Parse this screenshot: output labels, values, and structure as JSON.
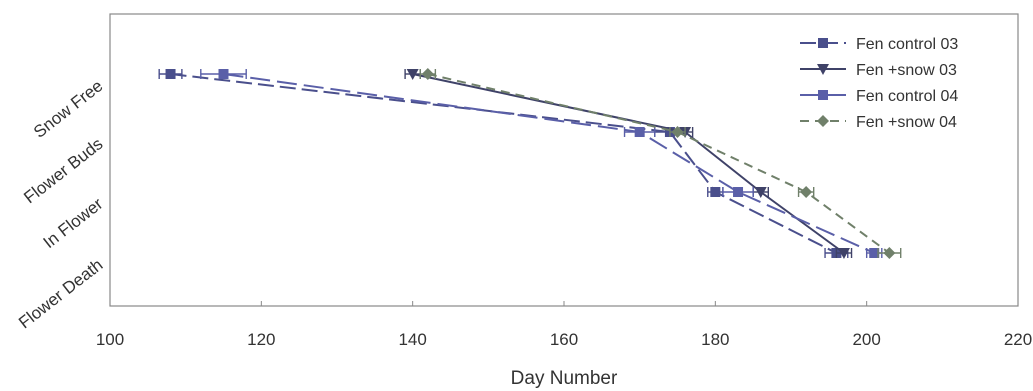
{
  "chart_data": {
    "type": "line",
    "xlabel": "Day Number",
    "ylabel": "",
    "xlim": [
      100,
      220
    ],
    "x_ticks": [
      100,
      120,
      140,
      160,
      180,
      200,
      220
    ],
    "categories": [
      "Snow Free",
      "Flower Buds",
      "In Flower",
      "Flower Death"
    ],
    "legend_position": "top-right",
    "grid": false,
    "series": [
      {
        "name": "Fen control 03",
        "color": "#4a4f8c",
        "marker": "square",
        "dash": "16,6",
        "x": [
          108,
          174,
          180,
          196
        ],
        "xerr": [
          1.5,
          2,
          1,
          1.5
        ]
      },
      {
        "name": "Fen +snow 03",
        "color": "#3f4268",
        "marker": "triangle-down",
        "dash": "",
        "x": [
          140,
          176,
          186,
          197
        ],
        "xerr": [
          1,
          1,
          1,
          1
        ]
      },
      {
        "name": "Fen control 04",
        "color": "#5a5fa8",
        "marker": "square",
        "dash": "20,7",
        "x": [
          115,
          170,
          183,
          201
        ],
        "xerr": [
          3,
          2,
          2,
          1
        ]
      },
      {
        "name": "Fen +snow 04",
        "color": "#70806a",
        "marker": "diamond",
        "dash": "9,6",
        "x": [
          142,
          175,
          192,
          203
        ],
        "xerr": [
          1,
          1,
          1,
          1.5
        ]
      }
    ]
  }
}
